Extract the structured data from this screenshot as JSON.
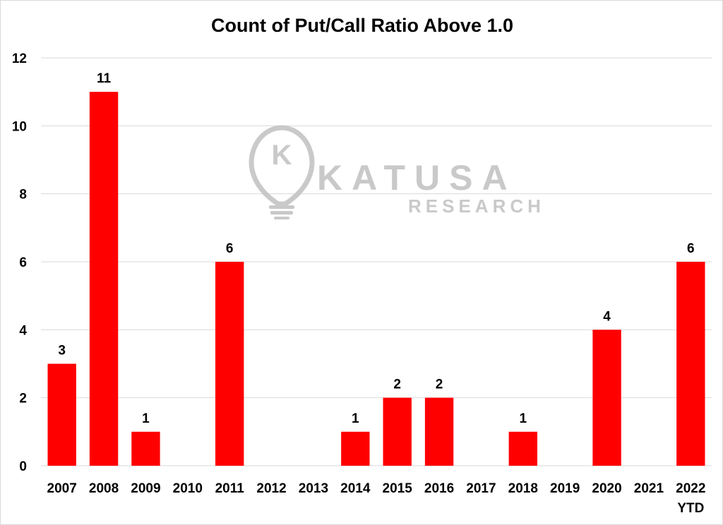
{
  "chart_data": {
    "type": "bar",
    "title": "Count of Put/Call Ratio Above 1.0",
    "xlabel": "",
    "ylabel": "",
    "categories": [
      "2007",
      "2008",
      "2009",
      "2010",
      "2011",
      "2012",
      "2013",
      "2014",
      "2015",
      "2016",
      "2017",
      "2018",
      "2019",
      "2020",
      "2021",
      "2022"
    ],
    "category_sublabels": {
      "2022": "YTD"
    },
    "values": [
      3,
      11,
      1,
      0,
      6,
      0,
      0,
      1,
      2,
      2,
      0,
      1,
      0,
      4,
      0,
      6
    ],
    "data_labels": [
      "3",
      "11",
      "1",
      "",
      "6",
      "",
      "",
      "1",
      "2",
      "2",
      "",
      "1",
      "",
      "4",
      "",
      "6"
    ],
    "ylim": [
      0,
      12
    ],
    "yticks": [
      0,
      2,
      4,
      6,
      8,
      10,
      12
    ],
    "grid": true,
    "legend": "none",
    "bar_color": "#ff0000"
  },
  "watermark": {
    "brand": "KATUSA",
    "sub": "RESEARCH",
    "logo_letter": "K"
  }
}
